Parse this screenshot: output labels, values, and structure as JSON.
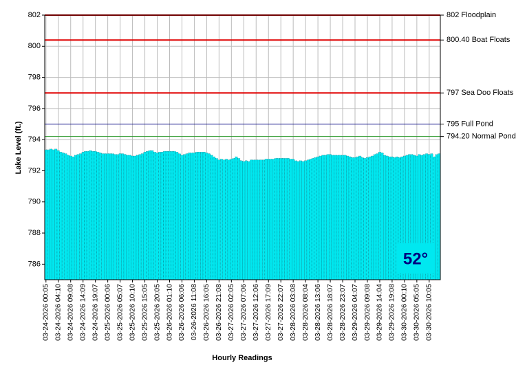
{
  "chart_data": {
    "type": "bar",
    "x_label": "Hourly Readings",
    "y_label": "Lake Level (ft.)",
    "color": "#00e8f0",
    "grid": true,
    "ylim": [
      785,
      802
    ],
    "yticks": [
      786,
      788,
      790,
      792,
      794,
      796,
      798,
      800,
      802
    ],
    "categories": [
      "03-24-2026 00:05",
      null,
      null,
      null,
      null,
      "03-24-2026 04:10",
      null,
      null,
      null,
      null,
      "03-24-2026 09:08",
      null,
      null,
      null,
      null,
      "03-24-2026 14:09",
      null,
      null,
      null,
      null,
      "03-24-2026 19:07",
      null,
      null,
      null,
      null,
      "03-25-2026 00:06",
      null,
      null,
      null,
      null,
      "03-25-2026 05:07",
      null,
      null,
      null,
      null,
      "03-25-2026 10:10",
      null,
      null,
      null,
      null,
      "03-25-2026 15:05",
      null,
      null,
      null,
      null,
      "03-25-2026 20:05",
      null,
      null,
      null,
      null,
      "03-26-2026 01:10",
      null,
      null,
      null,
      null,
      "03-26-2026 06:06",
      null,
      null,
      null,
      null,
      "03-26-2026 11:08",
      null,
      null,
      null,
      null,
      "03-26-2026 16:05",
      null,
      null,
      null,
      null,
      "03-26-2026 21:08",
      null,
      null,
      null,
      null,
      "03-27-2026 02:05",
      null,
      null,
      null,
      null,
      "03-27-2026 07:06",
      null,
      null,
      null,
      null,
      "03-27-2026 12:06",
      null,
      null,
      null,
      null,
      "03-27-2026 17:09",
      null,
      null,
      null,
      null,
      "03-27-2026 22:07",
      null,
      null,
      null,
      null,
      "03-28-2026 03:08",
      null,
      null,
      null,
      null,
      "03-28-2026 08:04",
      null,
      null,
      null,
      null,
      "03-28-2026 13:06",
      null,
      null,
      null,
      null,
      "03-28-2026 18:07",
      null,
      null,
      null,
      null,
      "03-28-2026 23:07",
      null,
      null,
      null,
      null,
      "03-29-2026 04:07",
      null,
      null,
      null,
      null,
      "03-29-2026 09:08",
      null,
      null,
      null,
      null,
      "03-29-2026 14:04",
      null,
      null,
      null,
      null,
      "03-29-2026 19:08",
      null,
      null,
      null,
      null,
      "03-30-2026 00:10",
      null,
      null,
      null,
      null,
      "03-30-2026 05:05",
      null,
      null,
      null,
      null,
      "03-30-2026 10:05",
      null,
      null,
      null,
      null
    ],
    "values": [
      793.35,
      793.35,
      793.4,
      793.35,
      793.4,
      793.3,
      793.2,
      793.15,
      793.1,
      793.0,
      792.95,
      792.9,
      793.0,
      793.05,
      793.1,
      793.2,
      793.25,
      793.25,
      793.3,
      793.25,
      793.25,
      793.2,
      793.15,
      793.1,
      793.1,
      793.1,
      793.1,
      793.1,
      793.05,
      793.05,
      793.1,
      793.1,
      793.05,
      793.0,
      793.0,
      792.95,
      792.95,
      793.0,
      793.05,
      793.1,
      793.2,
      793.25,
      793.3,
      793.3,
      793.2,
      793.15,
      793.2,
      793.2,
      793.25,
      793.25,
      793.25,
      793.25,
      793.25,
      793.2,
      793.1,
      793.0,
      793.05,
      793.1,
      793.15,
      793.15,
      793.15,
      793.2,
      793.2,
      793.2,
      793.2,
      793.15,
      793.1,
      793.0,
      792.9,
      792.8,
      792.7,
      792.75,
      792.7,
      792.75,
      792.7,
      792.75,
      792.8,
      792.9,
      792.8,
      792.65,
      792.6,
      792.65,
      792.6,
      792.7,
      792.7,
      792.7,
      792.7,
      792.7,
      792.7,
      792.75,
      792.75,
      792.75,
      792.75,
      792.8,
      792.8,
      792.8,
      792.8,
      792.8,
      792.8,
      792.75,
      792.75,
      792.65,
      792.6,
      792.65,
      792.6,
      792.65,
      792.7,
      792.75,
      792.8,
      792.85,
      792.9,
      792.95,
      793.0,
      793.0,
      793.05,
      793.05,
      793.0,
      793.0,
      793.0,
      793.0,
      793.0,
      793.0,
      792.95,
      792.9,
      792.85,
      792.85,
      792.9,
      792.95,
      792.85,
      792.8,
      792.85,
      792.9,
      792.95,
      793.05,
      793.1,
      793.2,
      793.15,
      793.0,
      792.95,
      792.9,
      792.9,
      792.85,
      792.9,
      792.85,
      792.9,
      792.95,
      793.0,
      793.05,
      793.05,
      793.0,
      792.95,
      793.05,
      793.0,
      793.05,
      793.1,
      793.05,
      793.1,
      792.9,
      793.05,
      793.1
    ],
    "reference_lines": [
      {
        "value": 802,
        "label": "802 Floodplain",
        "color": "#e00000"
      },
      {
        "value": 800.4,
        "label": "800.40 Boat Floats",
        "color": "#e00000"
      },
      {
        "value": 797,
        "label": "797 Sea Doo Floats",
        "color": "#e00000"
      },
      {
        "value": 795,
        "label": "795 Full Pond",
        "color": "#000080"
      },
      {
        "value": 794.2,
        "label": "794.20 Normal Pond",
        "color": "#2e9a2e"
      }
    ],
    "badge": "52°"
  }
}
